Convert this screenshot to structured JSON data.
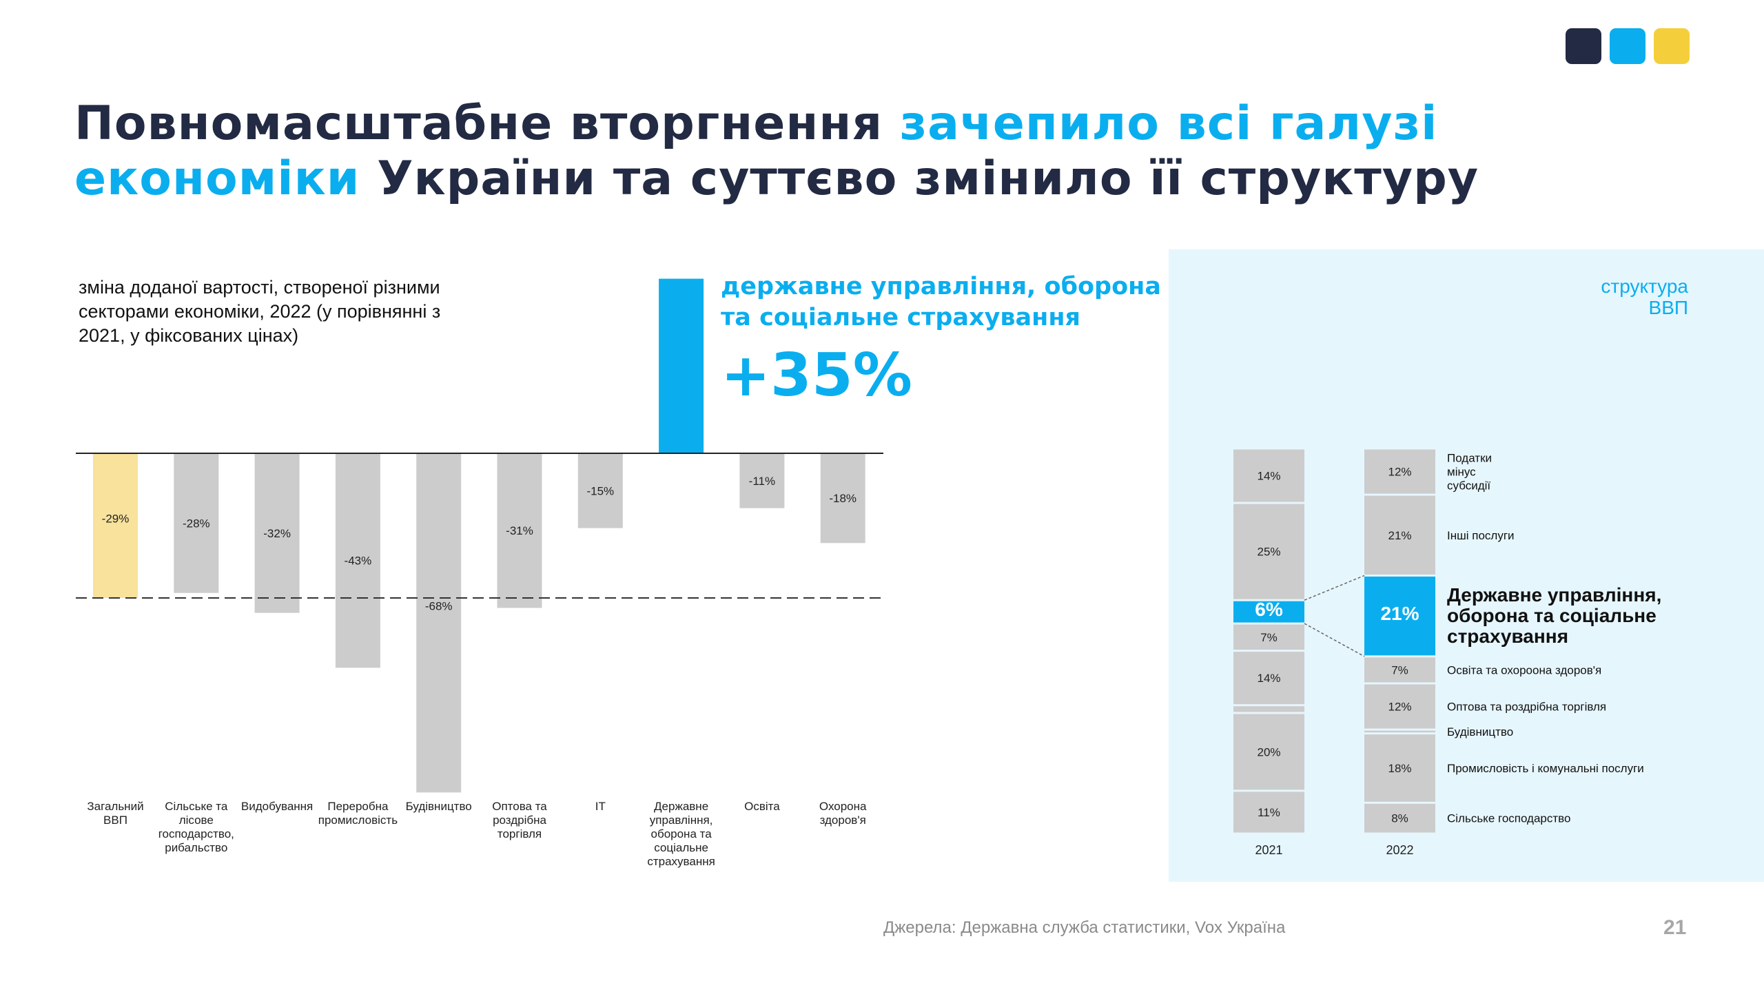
{
  "palette": {
    "navy": "#232a43",
    "blue": "#0aaeef",
    "yellow": "#f5cf3b",
    "grey": "#cccccc",
    "panel": "#e6f6fd",
    "paleYellow": "#f8e29c"
  },
  "title": {
    "part1": "Повномасштабне вторгнення ",
    "part2": "зачепило всі галузі",
    "part3": "економіки",
    "part4": " України та суттєво змінило її структуру"
  },
  "subtitle": "зміна доданої вартості, створеної різними секторами економіки, 2022 (у порівнянні з 2021, у фіксованих цінах)",
  "callout": {
    "label": "державне управління, оборона та соціальне страхування",
    "value": "+35%"
  },
  "chart_data": [
    {
      "type": "bar",
      "title": "зміна доданої вартості, створеної різними секторами економіки, 2022 (у порівнянні з 2021, у фіксованих цінах)",
      "categories": [
        [
          "Загальний",
          "ВВП"
        ],
        [
          "Сільське та",
          "лісове",
          "господарство,",
          "рибальство"
        ],
        [
          "Видобування"
        ],
        [
          "Переробна",
          "промисловість"
        ],
        [
          "Будівництво"
        ],
        [
          "Оптова та",
          "роздрібна",
          "торгівля"
        ],
        [
          "IT"
        ],
        [
          "Державне",
          "управління,",
          "оборона та",
          "соціальне",
          "страхування"
        ],
        [
          "Освіта"
        ],
        [
          "Охорона",
          "здоров'я"
        ]
      ],
      "values": [
        -29,
        -28,
        -32,
        -43,
        -68,
        -31,
        -15,
        35,
        -11,
        -18
      ],
      "labels": [
        "-29%",
        "-28%",
        "-32%",
        "-43%",
        "-68%",
        "-31%",
        "-15%",
        "",
        "-11%",
        "-18%"
      ],
      "highlight": {
        "0": "paleYellow",
        "7": "blue"
      },
      "reference_line": -29,
      "ylim": [
        -68,
        35
      ]
    },
    {
      "type": "bar",
      "title": "структура ВВП",
      "stacked": true,
      "categories": [
        "2021",
        "2022"
      ],
      "series": [
        {
          "name": "Сільське господарство",
          "values": [
            11,
            8
          ],
          "labels": [
            "11%",
            "8%"
          ]
        },
        {
          "name": "Промисловість і комунальні послуги",
          "values": [
            20,
            18
          ],
          "labels": [
            "20%",
            "18%"
          ]
        },
        {
          "name": "Будівництво",
          "values": [
            2,
            1
          ],
          "labels": [
            "",
            ""
          ]
        },
        {
          "name": "Оптова та роздрібна торгівля",
          "values": [
            14,
            12
          ],
          "labels": [
            "14%",
            "12%"
          ]
        },
        {
          "name": "Освіта та охороона здоров'я",
          "values": [
            7,
            7
          ],
          "labels": [
            "7%",
            "7%"
          ]
        },
        {
          "name": "Державне управління, оборона та соціальне страхування",
          "values": [
            6,
            21
          ],
          "labels": [
            "6%",
            "21%"
          ],
          "highlight": true
        },
        {
          "name": "Інші послуги",
          "values": [
            25,
            21
          ],
          "labels": [
            "25%",
            "21%"
          ]
        },
        {
          "name": "Податки мінус субсидії",
          "values": [
            14,
            12
          ],
          "labels": [
            "14%",
            "12%"
          ]
        }
      ],
      "legend_lines": [
        [
          "Сільське господарство"
        ],
        [
          "Промисловість і комунальні послуги"
        ],
        [
          "Будівництво"
        ],
        [
          "Оптова та роздрібна торгівля"
        ],
        [
          "Освіта та охороона здоров'я"
        ],
        [
          "Державне управління,",
          "оборона та соціальне",
          "страхування"
        ],
        [
          "Інші послуги"
        ],
        [
          "Податки",
          "мінус",
          "субсидії"
        ]
      ]
    }
  ],
  "gdp_structure_title": [
    "структура",
    "ВВП"
  ],
  "source": "Джерела: Державна служба статистики, Vox Україна",
  "page_number": "21"
}
